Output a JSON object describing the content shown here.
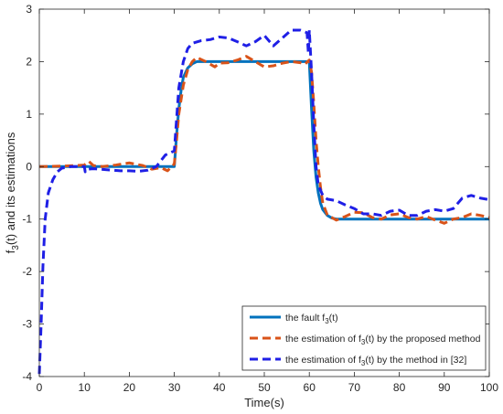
{
  "chart_data": {
    "type": "line",
    "title": "",
    "xlabel": "Time(s)",
    "ylabel": "f3(t) and its estimations",
    "ylabel_parts": {
      "pre": "f",
      "sub": "3",
      "post": "(t) and its estimations"
    },
    "xlim": [
      0,
      100
    ],
    "ylim": [
      -4,
      3
    ],
    "xticks": [
      0,
      10,
      20,
      30,
      40,
      50,
      60,
      70,
      80,
      90,
      100
    ],
    "yticks": [
      -4,
      -3,
      -2,
      -1,
      0,
      1,
      2,
      3
    ],
    "grid": false,
    "legend_position": "bottom-right",
    "series": [
      {
        "name": "the fault f3(t)",
        "legend_parts": {
          "pre": "the fault f",
          "sub": "3",
          "post": "(t)"
        },
        "color": "#0072BD",
        "style": "solid",
        "points": [
          [
            0,
            0
          ],
          [
            30,
            0
          ],
          [
            30.5,
            0.6
          ],
          [
            31,
            1.1
          ],
          [
            31.5,
            1.45
          ],
          [
            32,
            1.7
          ],
          [
            33,
            1.88
          ],
          [
            34,
            1.96
          ],
          [
            35,
            2.0
          ],
          [
            60,
            2.0
          ],
          [
            60.5,
            1.1
          ],
          [
            61,
            0.3
          ],
          [
            61.5,
            -0.2
          ],
          [
            62,
            -0.5
          ],
          [
            62.5,
            -0.7
          ],
          [
            63,
            -0.82
          ],
          [
            64,
            -0.93
          ],
          [
            65,
            -0.98
          ],
          [
            66,
            -1.0
          ],
          [
            100,
            -1.0
          ]
        ]
      },
      {
        "name": "the estimation of f3(t) by the proposed method",
        "legend_parts": {
          "pre": "the estimation of f",
          "sub": "3",
          "post": "(t) by the proposed method"
        },
        "color": "#D95319",
        "style": "dashed",
        "points": [
          [
            0,
            0
          ],
          [
            5,
            0.01
          ],
          [
            8,
            0.02
          ],
          [
            10,
            0.03
          ],
          [
            11,
            0.1
          ],
          [
            12,
            0.02
          ],
          [
            14,
            0.0
          ],
          [
            17,
            0.03
          ],
          [
            20,
            0.07
          ],
          [
            23,
            0.02
          ],
          [
            25,
            -0.05
          ],
          [
            27,
            -0.02
          ],
          [
            28.5,
            -0.08
          ],
          [
            30,
            0.05
          ],
          [
            30.5,
            0.5
          ],
          [
            31,
            1.0
          ],
          [
            32,
            1.55
          ],
          [
            33,
            1.85
          ],
          [
            34,
            2.0
          ],
          [
            35,
            2.08
          ],
          [
            37,
            2.0
          ],
          [
            39,
            1.9
          ],
          [
            40,
            1.97
          ],
          [
            42,
            1.98
          ],
          [
            44,
            2.03
          ],
          [
            46,
            2.1
          ],
          [
            48,
            2.0
          ],
          [
            50,
            1.9
          ],
          [
            52,
            1.92
          ],
          [
            54,
            1.97
          ],
          [
            56,
            2.0
          ],
          [
            58,
            1.98
          ],
          [
            59,
            1.95
          ],
          [
            60,
            2.03
          ],
          [
            60.5,
            1.8
          ],
          [
            61,
            1.2
          ],
          [
            61.5,
            0.5
          ],
          [
            62,
            0.0
          ],
          [
            62.5,
            -0.4
          ],
          [
            63,
            -0.7
          ],
          [
            64,
            -0.92
          ],
          [
            66,
            -1.02
          ],
          [
            68,
            -0.95
          ],
          [
            70,
            -0.87
          ],
          [
            72,
            -0.88
          ],
          [
            74,
            -0.97
          ],
          [
            76,
            -1.0
          ],
          [
            78,
            -0.92
          ],
          [
            80,
            -0.9
          ],
          [
            82,
            -0.97
          ],
          [
            84,
            -1.0
          ],
          [
            86,
            -0.95
          ],
          [
            88,
            -1.02
          ],
          [
            90,
            -1.08
          ],
          [
            92,
            -1.0
          ],
          [
            94,
            -0.97
          ],
          [
            96,
            -0.9
          ],
          [
            98,
            -0.93
          ],
          [
            100,
            -0.97
          ]
        ]
      },
      {
        "name": "the estimation of f3(t) by the method in [32]",
        "legend_parts": {
          "pre": "the estimation of f",
          "sub": "3",
          "post": "(t) by the method in [32]"
        },
        "color": "#1F1FE6",
        "style": "dashed",
        "points": [
          [
            0,
            -3.95
          ],
          [
            0.4,
            -3.0
          ],
          [
            0.8,
            -1.9
          ],
          [
            1.3,
            -1.0
          ],
          [
            2,
            -0.5
          ],
          [
            3,
            -0.25
          ],
          [
            4,
            -0.1
          ],
          [
            5,
            -0.03
          ],
          [
            7,
            0.0
          ],
          [
            10,
            0.0
          ],
          [
            10.2,
            -0.1
          ],
          [
            10.6,
            -0.05
          ],
          [
            12,
            -0.04
          ],
          [
            15,
            -0.06
          ],
          [
            18,
            -0.08
          ],
          [
            20,
            -0.08
          ],
          [
            22,
            -0.09
          ],
          [
            24,
            -0.07
          ],
          [
            26,
            0.0
          ],
          [
            28,
            0.22
          ],
          [
            30,
            0.3
          ],
          [
            30.5,
            0.9
          ],
          [
            31,
            1.5
          ],
          [
            32,
            2.0
          ],
          [
            33,
            2.25
          ],
          [
            34,
            2.35
          ],
          [
            36,
            2.4
          ],
          [
            38,
            2.42
          ],
          [
            40,
            2.47
          ],
          [
            42,
            2.45
          ],
          [
            44,
            2.38
          ],
          [
            46,
            2.3
          ],
          [
            48,
            2.38
          ],
          [
            50,
            2.5
          ],
          [
            52,
            2.3
          ],
          [
            54,
            2.45
          ],
          [
            56,
            2.6
          ],
          [
            58,
            2.6
          ],
          [
            59.5,
            2.55
          ],
          [
            59.8,
            2.15
          ],
          [
            60,
            2.6
          ],
          [
            60.5,
            1.8
          ],
          [
            61,
            0.8
          ],
          [
            61.5,
            0.0
          ],
          [
            62,
            -0.35
          ],
          [
            63,
            -0.55
          ],
          [
            64,
            -0.62
          ],
          [
            66,
            -0.65
          ],
          [
            68,
            -0.73
          ],
          [
            70,
            -0.8
          ],
          [
            72,
            -0.9
          ],
          [
            74,
            -0.9
          ],
          [
            76,
            -0.93
          ],
          [
            78,
            -0.85
          ],
          [
            80,
            -0.83
          ],
          [
            82,
            -0.93
          ],
          [
            84,
            -0.93
          ],
          [
            86,
            -0.85
          ],
          [
            88,
            -0.82
          ],
          [
            90,
            -0.85
          ],
          [
            92,
            -0.8
          ],
          [
            94,
            -0.6
          ],
          [
            96,
            -0.55
          ],
          [
            98,
            -0.6
          ],
          [
            100,
            -0.63
          ]
        ]
      }
    ]
  }
}
